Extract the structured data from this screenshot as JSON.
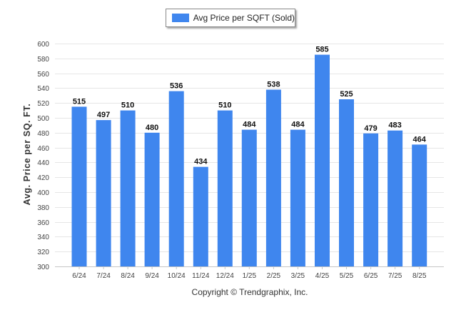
{
  "colors": {
    "bar": "#3f86ee",
    "grid": "#e6e6e6",
    "axis": "#c6c6c6"
  },
  "legend": {
    "label": "Avg Price per SQFT (Sold)"
  },
  "copyright": "Copyright © Trendgraphix, Inc.",
  "chart_data": {
    "type": "bar",
    "categories": [
      "6/24",
      "7/24",
      "8/24",
      "9/24",
      "10/24",
      "11/24",
      "12/24",
      "1/25",
      "2/25",
      "3/25",
      "4/25",
      "5/25",
      "6/25",
      "7/25",
      "8/25"
    ],
    "series": [
      {
        "name": "Avg Price per SQFT (Sold)",
        "values": [
          515,
          497,
          510,
          480,
          536,
          434,
          510,
          484,
          538,
          484,
          585,
          525,
          479,
          483,
          464
        ]
      }
    ],
    "xlabel": "",
    "ylabel": "Avg. Price per SQ. FT.",
    "ylim": [
      300,
      600
    ],
    "yticks": [
      300,
      320,
      340,
      360,
      380,
      400,
      420,
      440,
      460,
      480,
      500,
      520,
      540,
      560,
      580,
      600
    ],
    "grid": true,
    "legend_position": "top-center"
  }
}
